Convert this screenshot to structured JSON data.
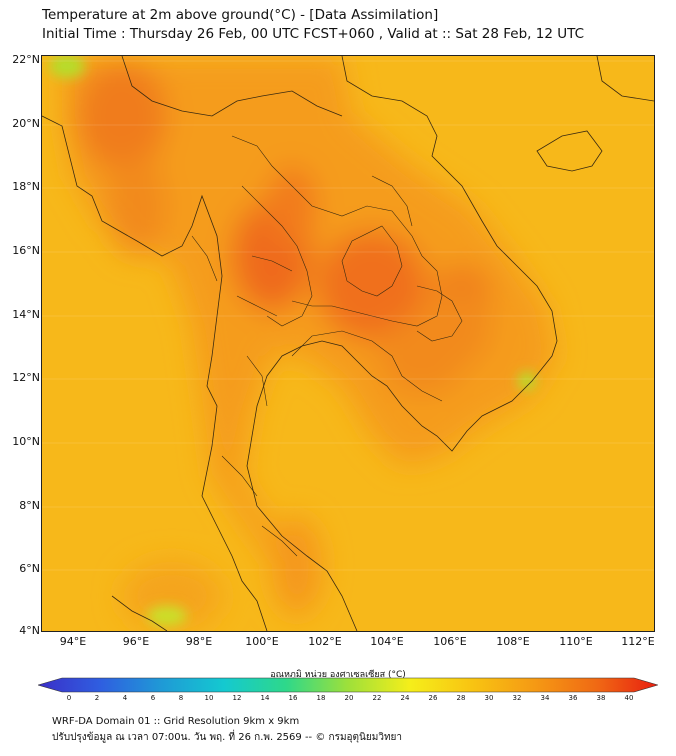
{
  "title_line1": "Temperature at 2m above ground(°C) - [Data Assimilation]",
  "title_line2": "Initial Time : Thursday 26 Feb, 00 UTC FCST+060 , Valid at :: Sat 28 Feb, 12 UTC",
  "lat_labels": [
    "22°N",
    "20°N",
    "18°N",
    "16°N",
    "14°N",
    "12°N",
    "10°N",
    "8°N",
    "6°N",
    "4°N"
  ],
  "lon_labels": [
    "94°E",
    "96°E",
    "98°E",
    "100°E",
    "102°E",
    "104°E",
    "106°E",
    "108°E",
    "110°E",
    "112°E"
  ],
  "colorbar": {
    "title": "อุณหภูมิ หน่วย องศาเซลเซียส (°C)",
    "ticks": [
      "0",
      "2",
      "4",
      "6",
      "8",
      "10",
      "12",
      "14",
      "16",
      "18",
      "20",
      "22",
      "24",
      "26",
      "28",
      "30",
      "32",
      "34",
      "36",
      "38",
      "40"
    ],
    "colors": [
      "#3b2fc8",
      "#2f5ee0",
      "#1f9ad6",
      "#14c9d0",
      "#2ed88a",
      "#9ee03a",
      "#f5ee1a",
      "#f8c412",
      "#f59a14",
      "#f06a14",
      "#e81e10"
    ]
  },
  "footer_line1": "WRF-DA Domain 01 :: Grid Resolution 9km x 9km",
  "footer_line2": "ปรับปรุงข้อมูล ณ เวลา 07:00น. วัน พฤ. ที่ 26 ก.พ. 2569 -- © กรมอุตุนิยมวิทยา",
  "colors": {
    "sea": "#f7b81a",
    "land_warm": "#f49a1c",
    "land_hot": "#f06e1e",
    "cool_patch": "#b6dd2c"
  }
}
